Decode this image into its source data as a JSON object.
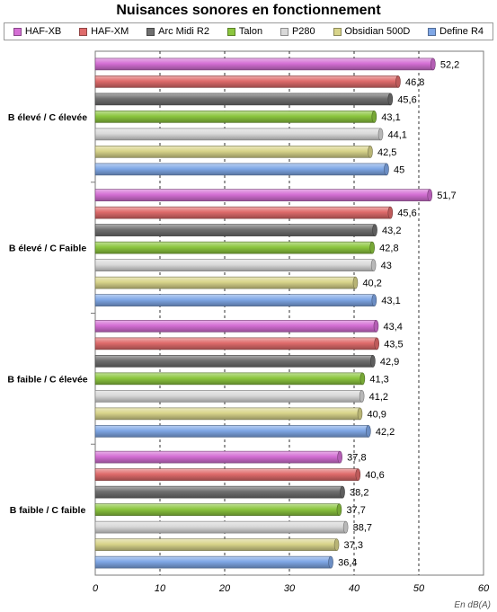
{
  "chart_data": {
    "type": "bar",
    "orientation": "horizontal",
    "title": "Nuisances sonores en fonctionnement",
    "xlabel": "En dB(A)",
    "xlim": [
      0,
      60
    ],
    "xticks": [
      0,
      10,
      20,
      30,
      40,
      50,
      60
    ],
    "grid": true,
    "legend_position": "top",
    "categories": [
      "B élevé / C élevée",
      "B élevé / C Faible",
      "B faible / C élevée",
      "B faible / C faible"
    ],
    "series": [
      {
        "name": "HAF-XB",
        "color": "#d46fd4",
        "values": [
          52.2,
          51.7,
          43.4,
          37.8
        ]
      },
      {
        "name": "HAF-XM",
        "color": "#df6b6b",
        "values": [
          46.8,
          45.6,
          43.5,
          40.6
        ]
      },
      {
        "name": "Arc Midi R2",
        "color": "#6f6f6f",
        "values": [
          45.6,
          43.2,
          42.9,
          38.2
        ]
      },
      {
        "name": "Talon",
        "color": "#8cc63f",
        "values": [
          43.1,
          42.8,
          41.3,
          37.7
        ]
      },
      {
        "name": "P280",
        "color": "#d9d9d9",
        "values": [
          44.1,
          43,
          41.2,
          38.7
        ]
      },
      {
        "name": "Obsidian 500D",
        "color": "#d8d48a",
        "values": [
          42.5,
          40.2,
          40.9,
          37.3
        ]
      },
      {
        "name": "Define R4",
        "color": "#7fa7e6",
        "values": [
          45,
          43.1,
          42.2,
          36.4
        ]
      }
    ],
    "value_labels": [
      [
        "52,2",
        "46,8",
        "45,6",
        "43,1",
        "44,1",
        "42,5",
        "45"
      ],
      [
        "51,7",
        "45,6",
        "43,2",
        "42,8",
        "43",
        "40,2",
        "43,1"
      ],
      [
        "43,4",
        "43,5",
        "42,9",
        "41,3",
        "41,2",
        "40,9",
        "42,2"
      ],
      [
        "37,8",
        "40,6",
        "38,2",
        "37,7",
        "38,7",
        "37,3",
        "36,4"
      ]
    ]
  }
}
